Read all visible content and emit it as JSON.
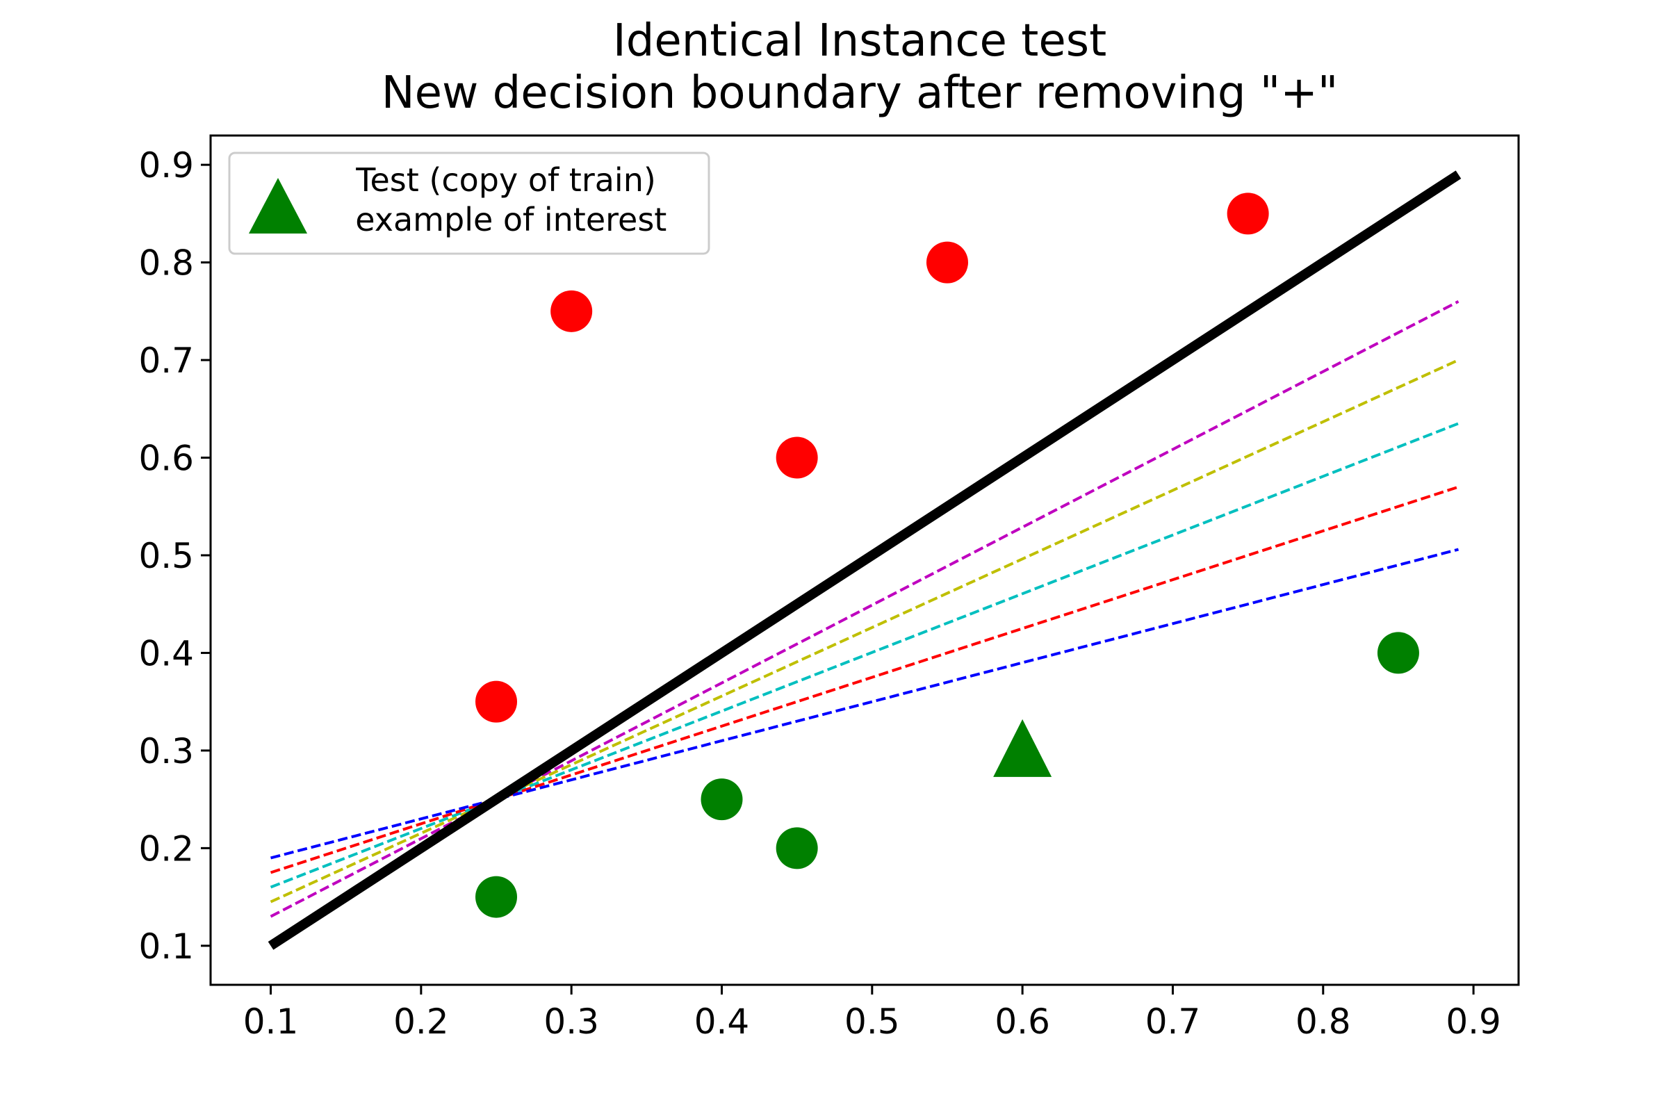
{
  "chart_data": {
    "type": "scatter",
    "title_line1": "Identical Instance test",
    "title_line2": "New decision boundary after removing \"+\"",
    "xlabel": "",
    "ylabel": "",
    "xlim": [
      0.06,
      0.93
    ],
    "ylim": [
      0.06,
      0.93
    ],
    "xticks": [
      "0.1",
      "0.2",
      "0.3",
      "0.4",
      "0.5",
      "0.6",
      "0.7",
      "0.8",
      "0.9"
    ],
    "yticks": [
      "0.1",
      "0.2",
      "0.3",
      "0.4",
      "0.5",
      "0.6",
      "0.7",
      "0.8",
      "0.9"
    ],
    "grid": false,
    "legend": {
      "placement": "upper left",
      "line1": "Test (copy of train)",
      "line2": " example of interest"
    },
    "series": [
      {
        "kind": "points",
        "marker": "circle",
        "color": "#ff0000",
        "points": [
          [
            0.3,
            0.75
          ],
          [
            0.55,
            0.8
          ],
          [
            0.75,
            0.85
          ],
          [
            0.45,
            0.6
          ],
          [
            0.25,
            0.35
          ]
        ]
      },
      {
        "kind": "points",
        "marker": "circle",
        "color": "#008000",
        "points": [
          [
            0.25,
            0.15
          ],
          [
            0.4,
            0.25
          ],
          [
            0.45,
            0.2
          ],
          [
            0.85,
            0.4
          ]
        ]
      },
      {
        "kind": "points",
        "marker": "triangle",
        "color": "#008000",
        "points": [
          [
            0.6,
            0.3
          ]
        ]
      },
      {
        "kind": "line",
        "style": "solid",
        "color": "#000000",
        "points": [
          [
            0.1,
            0.1
          ],
          [
            0.89,
            0.89
          ]
        ]
      },
      {
        "kind": "line",
        "style": "dashed",
        "color": "#bf00bf",
        "points": [
          [
            0.1,
            0.13
          ],
          [
            0.89,
            0.76
          ]
        ]
      },
      {
        "kind": "line",
        "style": "dashed",
        "color": "#bfbf00",
        "points": [
          [
            0.1,
            0.145
          ],
          [
            0.89,
            0.7
          ]
        ]
      },
      {
        "kind": "line",
        "style": "dashed",
        "color": "#00bfbf",
        "points": [
          [
            0.1,
            0.16
          ],
          [
            0.89,
            0.635
          ]
        ]
      },
      {
        "kind": "line",
        "style": "dashed",
        "color": "#ff0000",
        "points": [
          [
            0.1,
            0.175
          ],
          [
            0.89,
            0.57
          ]
        ]
      },
      {
        "kind": "line",
        "style": "dashed",
        "color": "#0000ff",
        "points": [
          [
            0.1,
            0.19
          ],
          [
            0.89,
            0.506
          ]
        ]
      }
    ]
  }
}
